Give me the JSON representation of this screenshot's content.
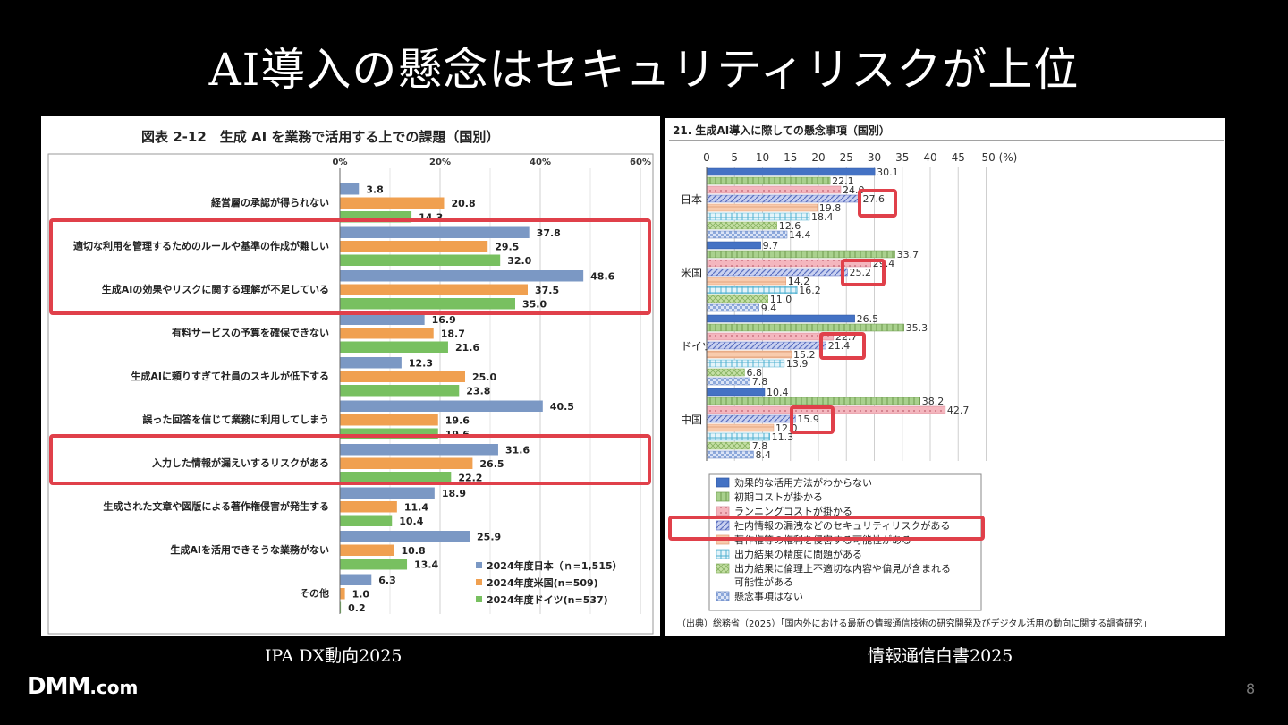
{
  "slide": {
    "title": "AI導入の懸念はセキュリティリスクが上位",
    "left_caption": "IPA DX動向2025",
    "right_caption": "情報通信白書2025",
    "logo": "DMM",
    "logo_domain": ".com",
    "page_number": "8"
  },
  "colors": {
    "highlight": "#e0404a",
    "ipa_japan": "#7b98c4",
    "ipa_us": "#f0a050",
    "ipa_germany": "#78c060",
    "mic_blue": "#4472c4",
    "mic_green": "#a9d18e",
    "mic_pink": "#f4b6be",
    "mic_hatch": "#8e9fd8",
    "mic_orange": "#f8cbad",
    "mic_cyan": "#9dd5e8",
    "mic_yellowgreen": "#c5e0a5",
    "mic_check": "#8ea9db"
  },
  "chart_data": [
    {
      "type": "bar",
      "orientation": "horizontal",
      "title": "図表 2-12　生成 AI を業務で活用する上での課題（国別）",
      "xlim": [
        0,
        60
      ],
      "tick_labels": [
        "0%",
        "20%",
        "40%",
        "60%"
      ],
      "grid": true,
      "legend_position": "bottom-right",
      "categories": [
        "経営層の承認が得られない",
        "適切な利用を管理するためのルールや基準の作成が難しい",
        "生成AIの効果やリスクに関する理解が不足している",
        "有料サービスの予算を確保できない",
        "生成AIに頼りすぎて社員のスキルが低下する",
        "誤った回答を信じて業務に利用してしまう",
        "入力した情報が漏えいするリスクがある",
        "生成された文章や図版による著作権侵害が発生する",
        "生成AIを活用できそうな業務がない",
        "その他"
      ],
      "series": [
        {
          "name": "2024年度日本（ｎ=1,515）",
          "values": [
            3.8,
            37.8,
            48.6,
            16.9,
            12.3,
            40.5,
            31.6,
            18.9,
            25.9,
            6.3
          ]
        },
        {
          "name": "2024年度米国(n=509)",
          "values": [
            20.8,
            29.5,
            37.5,
            18.7,
            25.0,
            19.6,
            26.5,
            11.4,
            10.8,
            1.0
          ]
        },
        {
          "name": "2024年度ドイツ(n=537)",
          "values": [
            14.3,
            32.0,
            35.0,
            21.6,
            23.8,
            19.6,
            22.2,
            10.4,
            13.4,
            0.2
          ]
        }
      ],
      "value_labels": [
        [
          "3.8",
          "37.8",
          "48.6",
          "16.9",
          "12.3",
          "40.5",
          "31.6",
          "18.9",
          "25.9",
          "6.3"
        ],
        [
          "20.8",
          "29.5",
          "37.5",
          "18.7",
          "25.0",
          "19.6",
          "26.5",
          "11.4",
          "10.8",
          "1.0"
        ],
        [
          "14.3",
          "32.0",
          "35.0",
          "21.6",
          "23.8",
          "19.6",
          "22.2",
          "10.4",
          "13.4",
          "0.2"
        ]
      ],
      "highlighted_categories": [
        1,
        2,
        6
      ]
    },
    {
      "type": "bar",
      "orientation": "horizontal",
      "title": "21. 生成AI導入に際しての懸念事項（国別）",
      "xlim": [
        0,
        50
      ],
      "tick_labels": [
        "0",
        "5",
        "10",
        "15",
        "20",
        "25",
        "30",
        "35",
        "40",
        "45",
        "50 (%)"
      ],
      "grid": true,
      "legend_position": "bottom",
      "groups": [
        "日本",
        "米国",
        "ドイツ",
        "中国"
      ],
      "series": [
        {
          "name": "効果的な活用方法がわからない",
          "values": [
            30.1,
            9.7,
            26.5,
            10.4
          ]
        },
        {
          "name": "初期コストが掛かる",
          "values": [
            22.1,
            33.7,
            35.3,
            38.2
          ]
        },
        {
          "name": "ランニングコストが掛かる",
          "values": [
            24.0,
            29.4,
            22.7,
            42.7
          ]
        },
        {
          "name": "社内情報の漏洩などのセキュリティリスクがある",
          "values": [
            27.6,
            25.2,
            21.4,
            15.9
          ]
        },
        {
          "name": "著作権等の権利を侵害する可能性がある",
          "values": [
            19.8,
            14.2,
            15.2,
            12.0
          ]
        },
        {
          "name": "出力結果の精度に問題がある",
          "values": [
            18.4,
            16.2,
            13.9,
            11.3
          ]
        },
        {
          "name": "出力結果に倫理上不適切な内容や偏見が含まれる可能性がある",
          "values": [
            12.6,
            11.0,
            6.8,
            7.8
          ]
        },
        {
          "name": "懸念事項はない",
          "values": [
            14.4,
            9.4,
            7.8,
            8.4
          ]
        }
      ],
      "value_labels": [
        [
          "30.1",
          "9.7",
          "26.5",
          "10.4"
        ],
        [
          "22.1",
          "33.7",
          "35.3",
          "38.2"
        ],
        [
          "24.0",
          "29.4",
          "22.7",
          "42.7"
        ],
        [
          "27.6",
          "25.2",
          "21.4",
          "15.9"
        ],
        [
          "19.8",
          "14.2",
          "15.2",
          "12.0"
        ],
        [
          "18.4",
          "16.2",
          "13.9",
          "11.3"
        ],
        [
          "12.6",
          "11.0",
          "6.8",
          "7.8"
        ],
        [
          "14.4",
          "9.4",
          "7.8",
          "8.4"
        ]
      ],
      "legend_labels": [
        "効果的な活用方法がわからない",
        "初期コストが掛かる",
        "ランニングコストが掛かる",
        "社内情報の漏洩などのセキュリティリスクがある",
        "著作権等の権利を侵害する可能性がある",
        "出力結果の精度に問題がある",
        "出力結果に倫理上不適切な内容や偏見が含まれる",
        "可能性がある",
        "懸念事項はない"
      ],
      "highlighted_series": 3,
      "source": "（出典）総務省（2025）「国内外における最新の情報通信技術の研究開発及びデジタル活用の動向に関する調査研究」"
    }
  ]
}
